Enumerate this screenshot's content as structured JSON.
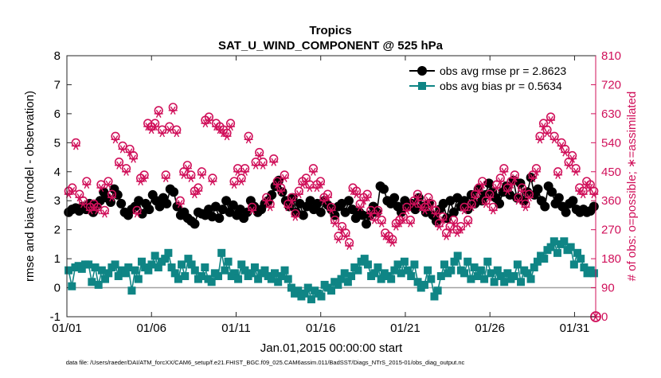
{
  "chart_data": {
    "type": "line",
    "title": "Tropics",
    "subtitle": "SAT_U_WIND_COMPONENT @ 525 hPa",
    "xlabel": "Jan.01,2015 00:00:00 start",
    "ylabel": "rmse and bias (model - observation)",
    "y2label": "# of obs: o=possible; ∗=assimilated",
    "footnote": "data file: /Users/raeder/DAI/ATM_forcXX/CAM6_setup/f.e21.FHIST_BGC.f09_025.CAM6assim.011/BadSST/Diags_NTrS_2015-01/obs_diag_output.nc",
    "xlim": [
      0,
      31.25
    ],
    "ylim": [
      -1,
      8
    ],
    "y2lim": [
      0,
      810
    ],
    "x_ticks": [
      0,
      5,
      10,
      15,
      20,
      25,
      30
    ],
    "x_tick_labels": [
      "01/01",
      "01/06",
      "01/11",
      "01/16",
      "01/21",
      "01/26",
      "01/31"
    ],
    "y_ticks": [
      -1,
      0,
      1,
      2,
      3,
      4,
      5,
      6,
      7,
      8
    ],
    "y2_ticks": [
      0,
      90,
      180,
      270,
      360,
      450,
      540,
      630,
      720,
      810
    ],
    "legend_position": "top-right",
    "colors": {
      "rmse": "#000000",
      "bias": "#0f8585",
      "obs": "#d0105a",
      "zero_line": "#a0a0a0"
    },
    "series": [
      {
        "name": "obs avg rmse pr = 2.8623",
        "marker": "filled-circle",
        "values": [
          2.6,
          2.7,
          2.75,
          2.65,
          2.8,
          2.7,
          2.9,
          2.6,
          2.85,
          3.0,
          3.3,
          3.1,
          2.95,
          3.4,
          3.2,
          2.9,
          2.6,
          2.5,
          2.7,
          2.8,
          3.0,
          2.55,
          2.9,
          2.7,
          3.2,
          3.0,
          2.8,
          3.1,
          2.9,
          3.4,
          3.3,
          2.8,
          2.5,
          2.6,
          2.4,
          2.3,
          2.2,
          2.6,
          2.55,
          2.5,
          2.7,
          2.45,
          2.8,
          2.4,
          2.7,
          3.0,
          2.6,
          2.85,
          2.5,
          2.7,
          2.4,
          2.6,
          3.0,
          2.8,
          2.6,
          2.7,
          2.9,
          3.0,
          3.2,
          3.5,
          3.7,
          3.3,
          3.0,
          2.8,
          3.1,
          2.6,
          2.9,
          2.5,
          2.8,
          3.0,
          2.7,
          2.9,
          2.6,
          3.0,
          2.85,
          2.7,
          2.5,
          2.8,
          2.9,
          2.6,
          3.0,
          2.7,
          2.4,
          2.6,
          2.5,
          2.2,
          2.5,
          2.8,
          2.6,
          3.5,
          3.4,
          3.0,
          2.9,
          3.1,
          2.8,
          2.6,
          3.0,
          2.8,
          2.9,
          2.7,
          3.1,
          2.8,
          2.6,
          2.9,
          2.5,
          2.3,
          2.7,
          2.9,
          2.4,
          3.0,
          2.6,
          3.1,
          2.8,
          3.0,
          2.7,
          3.2,
          2.9,
          3.4,
          3.0,
          3.2,
          3.6,
          3.3,
          3.1,
          2.9,
          3.3,
          3.5,
          3.2,
          3.7,
          3.1,
          3.6,
          3.0,
          3.3,
          3.8,
          3.2,
          3.4,
          3.0,
          2.8,
          3.5,
          3.3,
          2.9,
          3.1,
          2.8,
          2.6,
          2.9,
          3.0,
          2.7,
          2.6,
          2.7,
          2.6,
          2.65,
          2.8
        ]
      },
      {
        "name": "obs avg bias pr = 0.5634",
        "marker": "filled-square",
        "values": [
          0.6,
          0.05,
          0.7,
          0.75,
          0.65,
          0.8,
          0.8,
          0.2,
          0.7,
          0.1,
          0.6,
          0.3,
          0.5,
          0.7,
          0.8,
          0.4,
          0.6,
          0.5,
          0.7,
          -0.1,
          0.6,
          0.3,
          0.9,
          0.7,
          0.6,
          0.8,
          1.1,
          0.7,
          0.9,
          1.0,
          1.2,
          0.7,
          0.5,
          0.3,
          0.8,
          0.4,
          1.0,
          0.8,
          0.6,
          0.3,
          0.4,
          0.7,
          0.3,
          0.2,
          0.5,
          0.4,
          1.2,
          0.6,
          0.9,
          0.4,
          0.5,
          0.3,
          0.8,
          0.6,
          0.4,
          0.5,
          0.7,
          0.3,
          0.5,
          0.6,
          0.4,
          0.3,
          0.5,
          0.2,
          0.4,
          0.6,
          0.3,
          0.0,
          -0.2,
          -0.1,
          -0.3,
          -0.2,
          0.0,
          -0.4,
          -0.1,
          -0.2,
          -0.3,
          0.1,
          0.0,
          -0.1,
          0.2,
          0.1,
          0.3,
          0.5,
          0.2,
          0.4,
          0.7,
          0.6,
          0.9,
          1.0,
          0.8,
          0.4,
          0.5,
          0.7,
          0.3,
          0.5,
          0.4,
          0.3,
          0.6,
          0.8,
          0.5,
          0.9,
          0.6,
          0.4,
          0.8,
          0.2,
          0.0,
          0.1,
          0.6,
          0.3,
          -0.3,
          -0.1,
          0.4,
          0.8,
          0.5,
          0.6,
          0.9,
          1.1,
          0.6,
          0.5,
          0.9,
          0.3,
          0.7,
          0.4,
          0.6,
          0.3,
          0.9,
          0.5,
          0.2,
          0.6,
          0.4,
          0.2,
          0.5,
          0.3,
          0.4,
          0.8,
          0.2,
          0.6,
          0.5,
          0.3,
          0.7,
          0.9,
          1.1,
          1.0,
          1.3,
          1.4,
          1.6,
          1.2,
          1.5,
          1.6,
          1.3,
          1.4,
          0.8,
          1.2,
          1.0,
          0.7,
          0.5,
          0.6,
          0.5
        ]
      },
      {
        "name": "# of obs possible",
        "marker": "open-circle",
        "axis": "right",
        "values": [
          390,
          400,
          540,
          380,
          360,
          420,
          340,
          350,
          340,
          410,
          330,
          420,
          380,
          560,
          480,
          530,
          460,
          520,
          500,
          330,
          430,
          440,
          600,
          590,
          600,
          640,
          580,
          440,
          590,
          650,
          580,
          360,
          450,
          470,
          440,
          390,
          400,
          450,
          610,
          620,
          430,
          600,
          590,
          580,
          570,
          600,
          420,
          460,
          430,
          460,
          560,
          340,
          480,
          510,
          480,
          370,
          350,
          490,
          420,
          400,
          440,
          350,
          370,
          320,
          390,
          420,
          430,
          410,
          460,
          410,
          420,
          370,
          380,
          340,
          300,
          250,
          280,
          260,
          230,
          400,
          390,
          350,
          370,
          380,
          330,
          310,
          330,
          300,
          260,
          250,
          240,
          290,
          300,
          310,
          340,
          300,
          360,
          380,
          350,
          340,
          370,
          350,
          330,
          290,
          310,
          260,
          280,
          300,
          270,
          280,
          340,
          300,
          350,
          380,
          400,
          420,
          360,
          380,
          340,
          410,
          430,
          460,
          400,
          420,
          440,
          370,
          400,
          350,
          380,
          440,
          460,
          560,
          600,
          580,
          620,
          560,
          450,
          540,
          520,
          480,
          500,
          460,
          400,
          390,
          420,
          410,
          390
        ]
      },
      {
        "name": "# of obs assimilated",
        "marker": "asterisk",
        "axis": "right",
        "values": [
          380,
          390,
          530,
          370,
          350,
          410,
          330,
          340,
          330,
          400,
          320,
          410,
          370,
          550,
          470,
          520,
          450,
          510,
          490,
          320,
          420,
          430,
          590,
          580,
          590,
          630,
          570,
          430,
          580,
          640,
          570,
          350,
          440,
          460,
          430,
          380,
          390,
          440,
          600,
          610,
          420,
          590,
          580,
          570,
          560,
          590,
          410,
          450,
          420,
          450,
          550,
          330,
          470,
          500,
          470,
          360,
          340,
          480,
          410,
          390,
          430,
          340,
          360,
          310,
          380,
          410,
          420,
          400,
          450,
          400,
          410,
          360,
          370,
          330,
          290,
          240,
          270,
          250,
          220,
          390,
          380,
          340,
          360,
          370,
          320,
          300,
          320,
          290,
          250,
          240,
          230,
          280,
          290,
          300,
          330,
          290,
          350,
          370,
          340,
          330,
          360,
          340,
          320,
          280,
          300,
          250,
          270,
          290,
          260,
          270,
          330,
          290,
          340,
          370,
          390,
          410,
          350,
          370,
          330,
          400,
          420,
          450,
          390,
          410,
          430,
          360,
          390,
          340,
          370,
          430,
          450,
          550,
          590,
          570,
          610,
          550,
          440,
          530,
          510,
          470,
          490,
          450,
          390,
          380,
          410,
          400,
          380
        ]
      }
    ]
  }
}
